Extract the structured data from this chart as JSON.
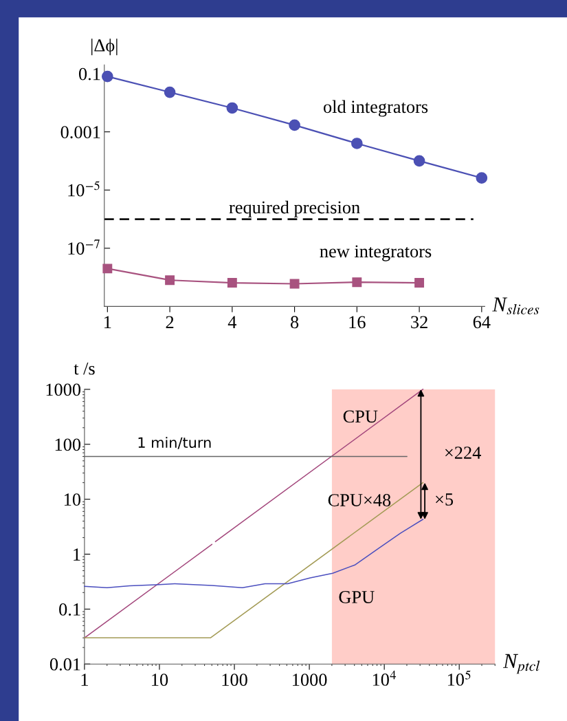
{
  "chart_data": [
    {
      "type": "line",
      "ylabel": "|Δϕ|",
      "xlabel": "N$_{slices}$",
      "categories": [
        "1",
        "2",
        "4",
        "8",
        "16",
        "32",
        "64"
      ],
      "log": "y",
      "ylim": [
        1e-09,
        0.2
      ],
      "yticks": [
        0.1,
        0.001,
        {
          "value": 1e-05,
          "label": "10$^{−5}$"
        },
        {
          "value": 1e-07,
          "label": "10$^{−7}$"
        }
      ],
      "marker": "circle",
      "grid": false,
      "legend": false,
      "series": [
        {
          "name": "old integrators",
          "color": "#4b50b4",
          "marker": "circle",
          "values": [
            0.08,
            0.023,
            0.0066,
            0.0017,
            0.0004,
            0.0001,
            2.6e-05
          ]
        },
        {
          "name": "new integrators",
          "color": "#a8527f",
          "marker": "square",
          "values": [
            2e-08,
            8e-09,
            6.5e-09,
            6e-09,
            6.8e-09,
            6.5e-09,
            null
          ]
        }
      ],
      "ref_lines": [
        {
          "axis": "y",
          "value": 1e-06,
          "label": "required precision",
          "color": "#111111",
          "line_style": "dashed"
        }
      ]
    },
    {
      "type": "line",
      "ylabel": "t /s",
      "xlabel": "N$_{ptcl}$",
      "log": "xy",
      "xlim": [
        1,
        300000
      ],
      "ylim": [
        0.01,
        1000
      ],
      "xticks": [
        1,
        10,
        100,
        1000,
        {
          "value": 10000,
          "label": "10$^{4}$"
        },
        {
          "value": 100000,
          "label": "10$^{5}$"
        }
      ],
      "yticks": [
        {
          "value": 0.01,
          "label": "0.01"
        },
        {
          "value": 0.1,
          "label": "0.1"
        },
        1,
        10,
        100,
        1000
      ],
      "grid": false,
      "legend": false,
      "marker": "none",
      "series": [
        {
          "name": "CPU",
          "color": "#a3477c",
          "x": [
            1,
            50,
            53,
            56,
            32768
          ],
          "values": [
            0.03,
            1.5,
            null,
            1.7,
            1000
          ]
        },
        {
          "name": "CPU×48",
          "color": "#a39b55",
          "x": [
            1,
            48,
            32768
          ],
          "values": [
            0.03,
            0.03,
            20
          ]
        },
        {
          "name": "GPU",
          "color": "#4b4fbf",
          "x": [
            1,
            2,
            4,
            10,
            16,
            50,
            128,
            256,
            512,
            1024,
            2048,
            4096,
            8192,
            16384,
            32768
          ],
          "values": [
            0.26,
            0.245,
            0.265,
            0.28,
            0.29,
            0.27,
            0.245,
            0.29,
            0.29,
            0.37,
            0.45,
            0.64,
            1.25,
            2.4,
            4.3
          ]
        },
        {
          "name": "1 min/turn",
          "color": "#666666",
          "x": [
            1,
            20000
          ],
          "values": [
            60,
            60
          ]
        }
      ],
      "bands": [
        {
          "axis": "x",
          "from": 2000,
          "to": 300000,
          "color": "#ffcdc8"
        }
      ],
      "annotations": [
        "×224",
        "×5"
      ]
    }
  ]
}
